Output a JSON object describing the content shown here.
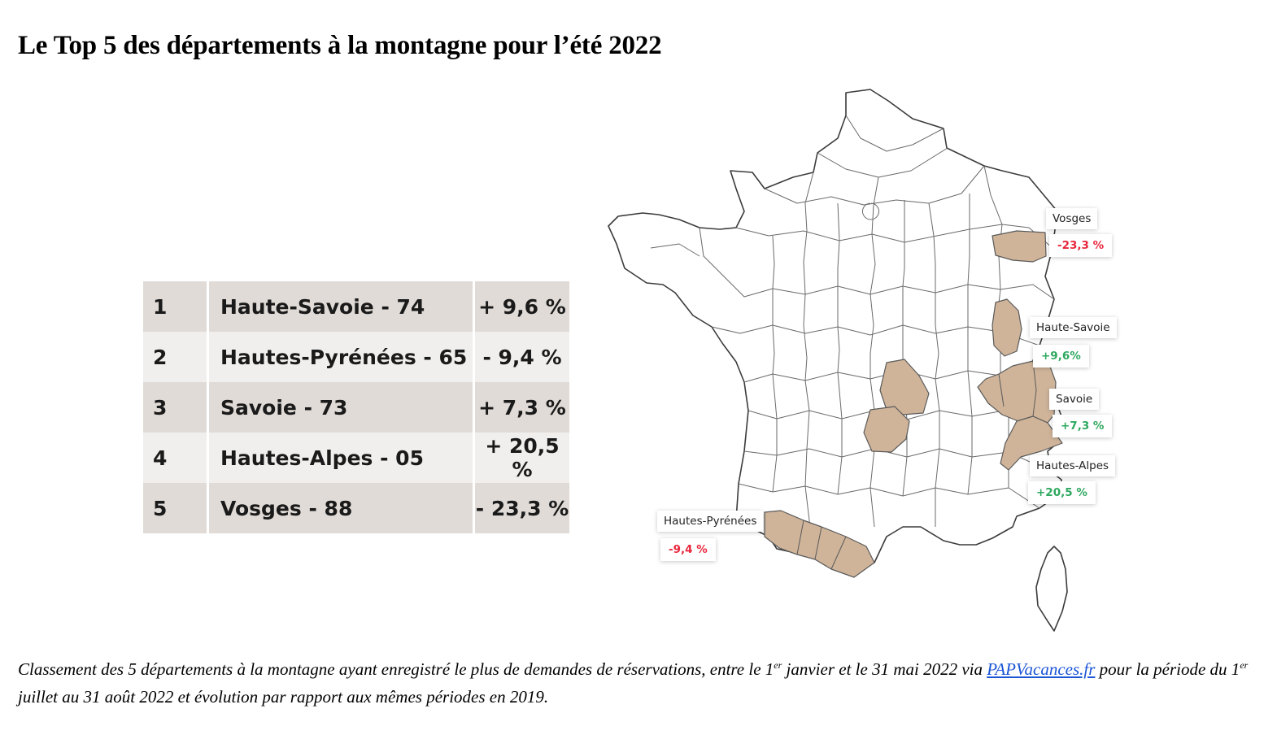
{
  "title": "Le Top 5 des départements à la montagne pour l’été 2022",
  "ranking": [
    {
      "rank": "1",
      "name": "Haute-Savoie - 74",
      "evolution": "+ 9,6 %",
      "trend": "pos"
    },
    {
      "rank": "2",
      "name": "Hautes-Pyrénées - 65",
      "evolution": "- 9,4 %",
      "trend": "neg"
    },
    {
      "rank": "3",
      "name": "Savoie - 73",
      "evolution": "+ 7,3 %",
      "trend": "pos"
    },
    {
      "rank": "4",
      "name": "Hautes-Alpes - 05",
      "evolution": "+ 20,5 %",
      "trend": "pos"
    },
    {
      "rank": "5",
      "name": "Vosges - 88",
      "evolution": "- 23,3 %",
      "trend": "neg"
    }
  ],
  "map": {
    "highlight_color": "#cfb49a",
    "callouts": {
      "vosges": {
        "label": "Vosges",
        "value": "-23,3 %",
        "trend": "neg"
      },
      "haute_savoie": {
        "label": "Haute-Savoie",
        "value": "+9,6%",
        "trend": "pos"
      },
      "savoie": {
        "label": "Savoie",
        "value": "+7,3 %",
        "trend": "pos"
      },
      "hautes_alpes": {
        "label": "Hautes-Alpes",
        "value": "+20,5 %",
        "trend": "pos"
      },
      "hautes_pyrenees": {
        "label": "Hautes-Pyrénées",
        "value": "-9,4 %",
        "trend": "neg"
      }
    }
  },
  "caption": {
    "part1": "Classement des 5 départements à la montagne ayant enregistré le plus de demandes de réservations, entre le 1",
    "sup1": "er",
    "part2": " janvier et le 31 mai 2022 via ",
    "link": "PAPVacances.fr",
    "part3": " pour la période du 1",
    "sup2": "er",
    "part4": " juillet au 31 août 2022 et évolution par rapport aux mêmes périodes en 2019."
  }
}
